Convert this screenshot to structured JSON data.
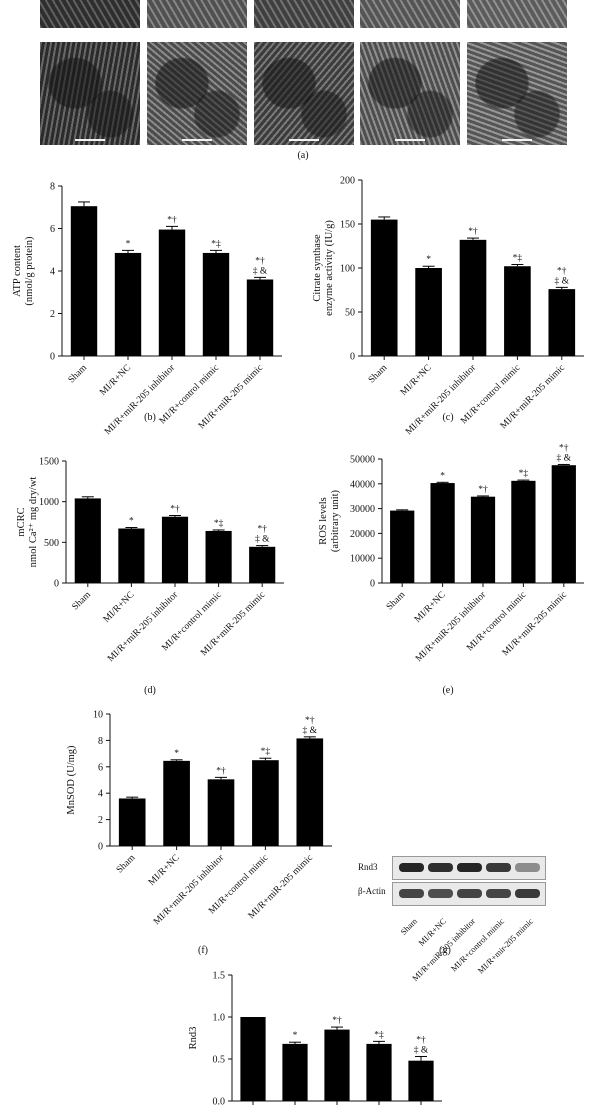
{
  "panel_labels": {
    "a": "(a)",
    "b": "(b)",
    "c": "(c)",
    "d": "(d)",
    "e": "(e)",
    "f": "(f)",
    "g": "(g)"
  },
  "groups": [
    "Sham",
    "MI/R+NC",
    "MI/R+miR-205 inhibitor",
    "MI/R+control mimic",
    "MI/R+miR-205 mimic"
  ],
  "western_blot": {
    "rows": [
      "Rnd3",
      "β-Actin"
    ],
    "lanes": [
      "Sham",
      "MI/R+NC",
      "MI/R+miR-205 inhibitor",
      "MI/R+control mimic",
      "MI/R+mir-205 mimic"
    ],
    "intensity": {
      "Rnd3": [
        0.95,
        0.9,
        0.95,
        0.85,
        0.45
      ],
      "β-Actin": [
        0.8,
        0.75,
        0.8,
        0.8,
        0.85
      ]
    }
  },
  "chart_data": [
    {
      "id": "b",
      "type": "bar",
      "categories": [
        "Sham",
        "MI/R+NC",
        "MI/R+miR-205 inhibitor",
        "MI/R+control mimic",
        "MI/R+miR-205 mimic"
      ],
      "values": [
        7.05,
        4.85,
        5.95,
        4.85,
        3.6
      ],
      "errors": [
        0.2,
        0.12,
        0.15,
        0.12,
        0.1
      ],
      "annotations": [
        "",
        "*",
        "*†",
        "*‡",
        "*†|‡ &"
      ],
      "ylabel": [
        "ATP content",
        "(nmol/g protein)"
      ],
      "ylim": [
        0,
        8
      ],
      "yticks": [
        0,
        2,
        4,
        6,
        8
      ]
    },
    {
      "id": "c",
      "type": "bar",
      "categories": [
        "Sham",
        "MI/R+NC",
        "MI/R+miR-205 inhibitor",
        "MI/R+control mimic",
        "MI/R+miR-205 mimic"
      ],
      "values": [
        155,
        100,
        132,
        102,
        76
      ],
      "errors": [
        3,
        2,
        2,
        2,
        2
      ],
      "annotations": [
        "",
        "*",
        "*†",
        "*‡",
        "*†|‡ &"
      ],
      "ylabel": [
        "Citrate synthase",
        "enzyme activity (IU/g)"
      ],
      "ylim": [
        0,
        200
      ],
      "yticks": [
        0,
        50,
        100,
        150,
        200
      ]
    },
    {
      "id": "d",
      "type": "bar",
      "categories": [
        "Sham",
        "MI/R+NC",
        "MI/R+miR-205 inhibitor",
        "MI/R+control mimic",
        "MI/R+miR-205 mimic"
      ],
      "values": [
        1040,
        670,
        815,
        640,
        445
      ],
      "errors": [
        20,
        12,
        15,
        12,
        15
      ],
      "annotations": [
        "",
        "*",
        "*†",
        "*‡",
        "*†|‡ &"
      ],
      "ylabel": [
        "mCRC",
        "nmol Ca²⁺ mg dry/wt"
      ],
      "ylim": [
        0,
        1500
      ],
      "yticks": [
        0,
        500,
        1000,
        1500
      ]
    },
    {
      "id": "e",
      "type": "bar",
      "categories": [
        "Sham",
        "MI/R+NC",
        "MI/R+miR-205 inhibitor",
        "MI/R+control mimic",
        "MI/R+miR-205 mimic"
      ],
      "values": [
        29200,
        40300,
        34800,
        41200,
        47500
      ],
      "errors": [
        300,
        300,
        300,
        300,
        300
      ],
      "annotations": [
        "",
        "*",
        "*†",
        "*‡",
        "*†|‡ &"
      ],
      "ylabel": [
        "ROS levels",
        "(arbitrary unit)"
      ],
      "ylim": [
        0,
        50000
      ],
      "yticks": [
        0,
        10000,
        20000,
        30000,
        40000,
        50000
      ]
    },
    {
      "id": "f",
      "type": "bar",
      "categories": [
        "Sham",
        "MI/R+NC",
        "MI/R+miR-205 inhibitor",
        "MI/R+control mimic",
        "MI/R+miR-205 mimic"
      ],
      "values": [
        3.6,
        6.45,
        5.05,
        6.5,
        8.15
      ],
      "errors": [
        0.1,
        0.08,
        0.15,
        0.15,
        0.12
      ],
      "annotations": [
        "",
        "*",
        "*†",
        "*‡",
        "*†|‡ &"
      ],
      "ylabel": [
        "MnSOD (U/mg)"
      ],
      "ylim": [
        0,
        10
      ],
      "yticks": [
        0,
        2,
        4,
        6,
        8,
        10
      ]
    },
    {
      "id": "h",
      "type": "bar",
      "categories": [
        "",
        "",
        "",
        "",
        ""
      ],
      "values": [
        1.0,
        0.68,
        0.85,
        0.68,
        0.48
      ],
      "errors": [
        0,
        0.02,
        0.03,
        0.03,
        0.05
      ],
      "annotations": [
        "",
        "*",
        "*†",
        "*‡",
        "*†|‡ &"
      ],
      "ylabel": [
        "Rnd3"
      ],
      "ylim": [
        0,
        1.5
      ],
      "yticks": [
        0,
        0.5,
        1.0,
        1.5
      ]
    }
  ]
}
